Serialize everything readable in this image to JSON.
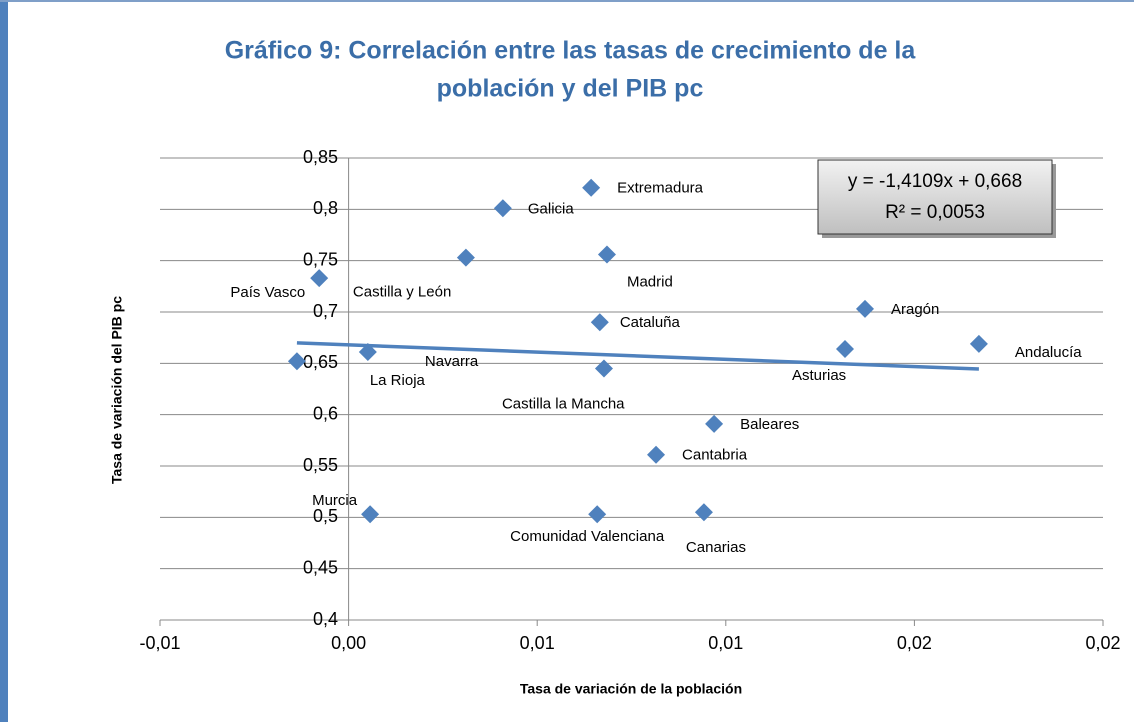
{
  "chart_data": {
    "type": "scatter",
    "title": [
      "Gráfico 9: Correlación entre las tasas de crecimiento de la",
      "población y del PIB pc"
    ],
    "x_label": "Tasa de variación de la población",
    "y_label": "Tasa de variación del PIB pc",
    "labels": [
      "País Vasco",
      "Castilla y León",
      "Galicia",
      "Extremadura",
      "Madrid",
      "Cataluña",
      "Aragón",
      "Andalucía",
      "Asturias",
      "Castilla la Mancha",
      "Baleares",
      "Cantabria",
      "Canarias",
      "Comunidad Valenciana",
      "Murcia",
      "La Rioja",
      "Navarra"
    ],
    "x": [
      -0.00078,
      0.00311,
      0.00409,
      0.00643,
      0.00685,
      0.00666,
      0.01369,
      0.01671,
      0.01316,
      0.00677,
      0.00969,
      0.00815,
      0.00942,
      0.00659,
      0.00057,
      0.00051,
      -0.00137
    ],
    "values": [
      0.733,
      0.753,
      0.801,
      0.821,
      0.756,
      0.69,
      0.703,
      0.669,
      0.664,
      0.645,
      0.591,
      0.561,
      0.505,
      0.503,
      0.503,
      0.661,
      0.652
    ],
    "color": "#4f81bd",
    "xlim": [
      -0.005,
      0.02
    ],
    "xticks": [
      {
        "value": -0.005,
        "label": "-0,01"
      },
      {
        "value": 0,
        "label": "0,00"
      },
      {
        "value": 0.005,
        "label": "0,01"
      },
      {
        "value": 0.01,
        "label": "0,01"
      },
      {
        "value": 0.015,
        "label": "0,02"
      },
      {
        "value": 0.02,
        "label": "0,02"
      }
    ],
    "ylim": [
      0.4,
      0.85
    ],
    "yticks": [
      {
        "value": 0.4,
        "label": "0,4"
      },
      {
        "value": 0.45,
        "label": "0,45"
      },
      {
        "value": 0.5,
        "label": "0,5"
      },
      {
        "value": 0.55,
        "label": "0,55"
      },
      {
        "value": 0.6,
        "label": "0,6"
      },
      {
        "value": 0.65,
        "label": "0,65"
      },
      {
        "value": 0.7,
        "label": "0,7"
      },
      {
        "value": 0.75,
        "label": "0,75"
      },
      {
        "value": 0.8,
        "label": "0,8"
      },
      {
        "value": 0.85,
        "label": "0,85"
      }
    ],
    "grid": true,
    "trendline": {
      "slope": -1.4109,
      "intercept": 0.668,
      "equation": "y = -1,4109x + 0,668",
      "r2_label": "R² = 0,0053"
    }
  }
}
